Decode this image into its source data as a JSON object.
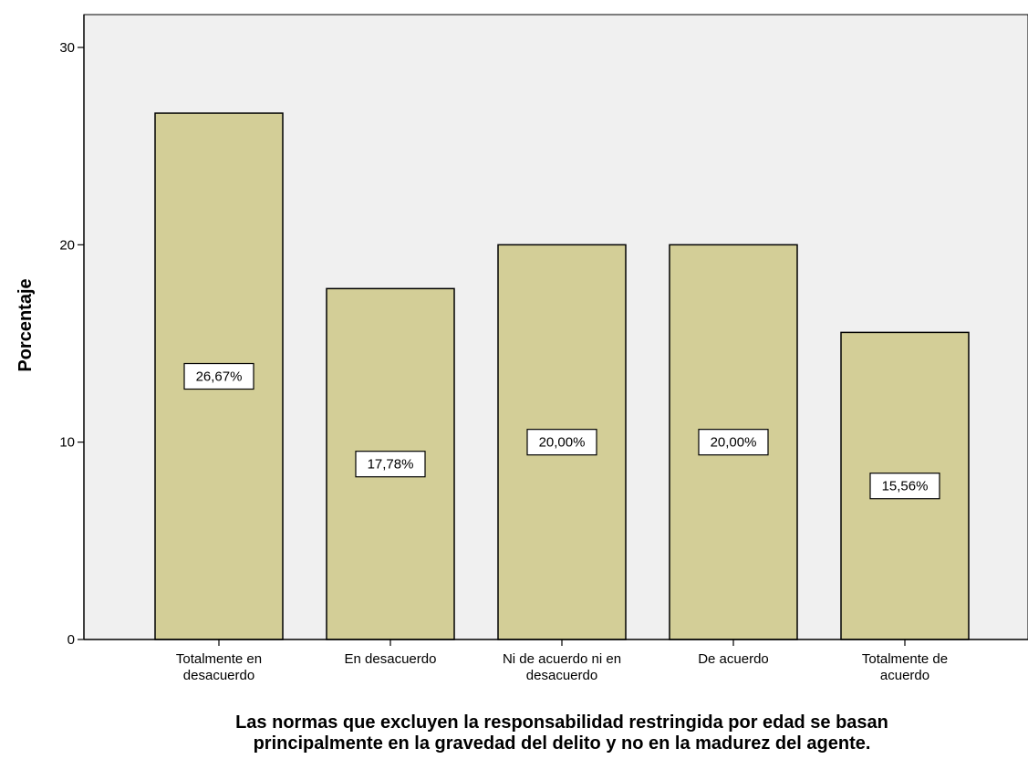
{
  "chart_data": {
    "type": "bar",
    "categories": [
      [
        "Totalmente en",
        "desacuerdo"
      ],
      [
        "En desacuerdo"
      ],
      [
        "Ni de acuerdo ni en",
        "desacuerdo"
      ],
      [
        "De acuerdo"
      ],
      [
        "Totalmente de",
        "acuerdo"
      ]
    ],
    "values": [
      26.67,
      17.78,
      20.0,
      20.0,
      15.56
    ],
    "data_labels": [
      "26,67%",
      "17,78%",
      "20,00%",
      "20,00%",
      "15,56%"
    ],
    "ylabel": "Porcentaje",
    "xlabel": [
      "Las normas que excluyen la responsabilidad restringida por edad se basan",
      "principalmente en la gravedad del delito y no en la madurez del agente."
    ],
    "ylim": [
      0,
      30
    ],
    "yticks": [
      0,
      10,
      20,
      30
    ],
    "grid": false,
    "legend": "none",
    "colors": {
      "bar_fill": "#d3ce97",
      "bar_stroke": "#000000",
      "plot_background": "#f0f0f0",
      "label_box_fill": "#ffffff"
    }
  }
}
